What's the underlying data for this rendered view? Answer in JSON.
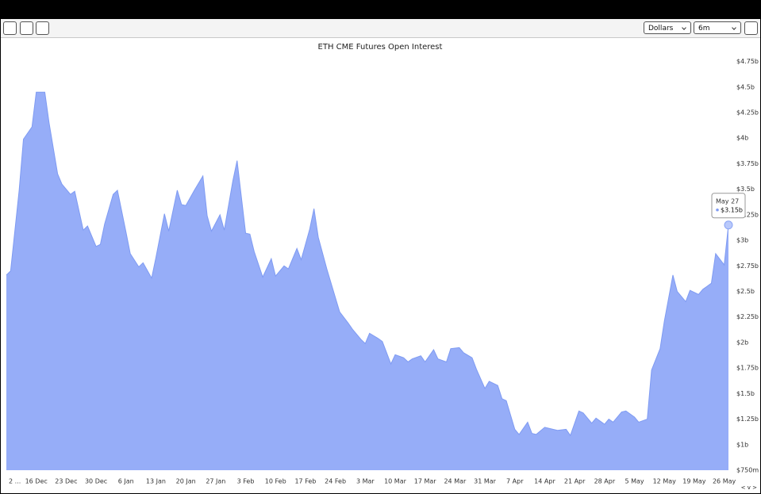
{
  "controls": {
    "unit": "Dollars",
    "range": "6m",
    "nav": "< v >"
  },
  "chart_data": {
    "type": "area",
    "title": "ETH CME Futures Open Interest",
    "x": [
      "Dec 9",
      "Dec 10",
      "Dec 12",
      "Dec 13",
      "Dec 15",
      "Dec 16",
      "Dec 18",
      "Dec 19",
      "Dec 21",
      "Dec 22",
      "Dec 24",
      "Dec 25",
      "Dec 27",
      "Dec 28",
      "Dec 30",
      "Dec 31",
      "Jan 1",
      "Jan 3",
      "Jan 4",
      "Jan 6",
      "Jan 7",
      "Jan 9",
      "Jan 10",
      "Jan 12",
      "Jan 13",
      "Jan 15",
      "Jan 16",
      "Jan 18",
      "Jan 19",
      "Jan 20",
      "Jan 22",
      "Jan 24",
      "Jan 25",
      "Jan 26",
      "Jan 28",
      "Jan 29",
      "Jan 31",
      "Feb 1",
      "Feb 3",
      "Feb 4",
      "Feb 5",
      "Feb 7",
      "Feb 9",
      "Feb 10",
      "Feb 12",
      "Feb 13",
      "Feb 15",
      "Feb 16",
      "Feb 18",
      "Feb 19",
      "Feb 20",
      "Feb 22",
      "Feb 24",
      "Feb 25",
      "Feb 27",
      "Feb 28",
      "Mar 2",
      "Mar 3",
      "Mar 4",
      "Mar 6",
      "Mar 7",
      "Mar 9",
      "Mar 10",
      "Mar 12",
      "Mar 13",
      "Mar 14",
      "Mar 16",
      "Mar 17",
      "Mar 19",
      "Mar 20",
      "Mar 22",
      "Mar 23",
      "Mar 25",
      "Mar 26",
      "Mar 28",
      "Mar 29",
      "Mar 31",
      "Apr 1",
      "Apr 3",
      "Apr 4",
      "Apr 5",
      "Apr 7",
      "Apr 8",
      "Apr 10",
      "Apr 11",
      "Apr 12",
      "Apr 14",
      "Apr 16",
      "Apr 17",
      "Apr 19",
      "Apr 20",
      "Apr 22",
      "Apr 23",
      "Apr 25",
      "Apr 26",
      "Apr 28",
      "Apr 29",
      "Apr 30",
      "May 2",
      "May 3",
      "May 5",
      "May 6",
      "May 8",
      "May 9",
      "May 11",
      "May 12",
      "May 14",
      "May 15",
      "May 17",
      "May 18",
      "May 20",
      "May 21",
      "May 23",
      "May 24",
      "May 26",
      "May 27"
    ],
    "series": [
      {
        "name": "Open Interest",
        "color": "#96adf8",
        "line_color": "#7f9bf2",
        "values": [
          2.66,
          2.7,
          3.49,
          3.99,
          4.11,
          4.45,
          4.45,
          4.15,
          3.65,
          3.55,
          3.45,
          3.48,
          3.1,
          3.14,
          2.94,
          2.96,
          3.16,
          3.45,
          3.49,
          3.08,
          2.87,
          2.74,
          2.78,
          2.63,
          2.83,
          3.26,
          3.09,
          3.49,
          3.35,
          3.34,
          3.49,
          3.63,
          3.24,
          3.09,
          3.25,
          3.1,
          3.58,
          3.78,
          3.07,
          3.06,
          2.89,
          2.64,
          2.82,
          2.65,
          2.75,
          2.72,
          2.92,
          2.81,
          3.11,
          3.31,
          3.03,
          2.72,
          2.44,
          2.3,
          2.19,
          2.13,
          2.03,
          1.99,
          2.09,
          2.04,
          2.01,
          1.79,
          1.88,
          1.85,
          1.81,
          1.84,
          1.87,
          1.81,
          1.93,
          1.84,
          1.81,
          1.94,
          1.95,
          1.9,
          1.85,
          1.74,
          1.55,
          1.62,
          1.58,
          1.45,
          1.43,
          1.15,
          1.1,
          1.22,
          1.11,
          1.1,
          1.17,
          1.15,
          1.14,
          1.15,
          1.09,
          1.33,
          1.31,
          1.21,
          1.26,
          1.2,
          1.25,
          1.22,
          1.32,
          1.33,
          1.27,
          1.22,
          1.25,
          1.73,
          1.94,
          2.21,
          2.66,
          2.5,
          2.4,
          2.51,
          2.47,
          2.52,
          2.58,
          2.87,
          2.76,
          3.15
        ]
      }
    ],
    "xticks": [
      {
        "value": "Dec 9",
        "label": "2 ..."
      },
      {
        "value": "Dec 16",
        "label": "16 Dec"
      },
      {
        "value": "Dec 23",
        "label": "23 Dec"
      },
      {
        "value": "Dec 30",
        "label": "30 Dec"
      },
      {
        "value": "Jan 6",
        "label": "6 Jan"
      },
      {
        "value": "Jan 13",
        "label": "13 Jan"
      },
      {
        "value": "Jan 20",
        "label": "20 Jan"
      },
      {
        "value": "Jan 27",
        "label": "27 Jan"
      },
      {
        "value": "Feb 3",
        "label": "3 Feb"
      },
      {
        "value": "Feb 10",
        "label": "10 Feb"
      },
      {
        "value": "Feb 17",
        "label": "17 Feb"
      },
      {
        "value": "Feb 24",
        "label": "24 Feb"
      },
      {
        "value": "Mar 3",
        "label": "3 Mar"
      },
      {
        "value": "Mar 10",
        "label": "10 Mar"
      },
      {
        "value": "Mar 17",
        "label": "17 Mar"
      },
      {
        "value": "Mar 24",
        "label": "24 Mar"
      },
      {
        "value": "Mar 31",
        "label": "31 Mar"
      },
      {
        "value": "Apr 7",
        "label": "7 Apr"
      },
      {
        "value": "Apr 14",
        "label": "14 Apr"
      },
      {
        "value": "Apr 21",
        "label": "21 Apr"
      },
      {
        "value": "Apr 28",
        "label": "28 Apr"
      },
      {
        "value": "May 5",
        "label": "5 May"
      },
      {
        "value": "May 12",
        "label": "12 May"
      },
      {
        "value": "May 19",
        "label": "19 May"
      },
      {
        "value": "May 26",
        "label": "26 May"
      }
    ],
    "ylim": [
      0.75,
      4.84
    ],
    "yticks": [
      {
        "value": 0.75,
        "label": "$750m"
      },
      {
        "value": 1,
        "label": "$1b"
      },
      {
        "value": 1.25,
        "label": "$1.25b"
      },
      {
        "value": 1.5,
        "label": "$1.5b"
      },
      {
        "value": 1.75,
        "label": "$1.75b"
      },
      {
        "value": 2,
        "label": "$2b"
      },
      {
        "value": 2.25,
        "label": "$2.25b"
      },
      {
        "value": 2.5,
        "label": "$2.5b"
      },
      {
        "value": 2.75,
        "label": "$2.75b"
      },
      {
        "value": 3,
        "label": "$3b"
      },
      {
        "value": 3.25,
        "label": "$3.25b"
      },
      {
        "value": 3.5,
        "label": "$3.5b"
      },
      {
        "value": 3.75,
        "label": "$3.75b"
      },
      {
        "value": 4,
        "label": "$4b"
      },
      {
        "value": 4.25,
        "label": "$4.25b"
      },
      {
        "value": 4.5,
        "label": "$4.5b"
      },
      {
        "value": 4.75,
        "label": "$4.75b"
      }
    ],
    "grid": false,
    "tooltip": {
      "value_label": "$3.15b"
    }
  }
}
